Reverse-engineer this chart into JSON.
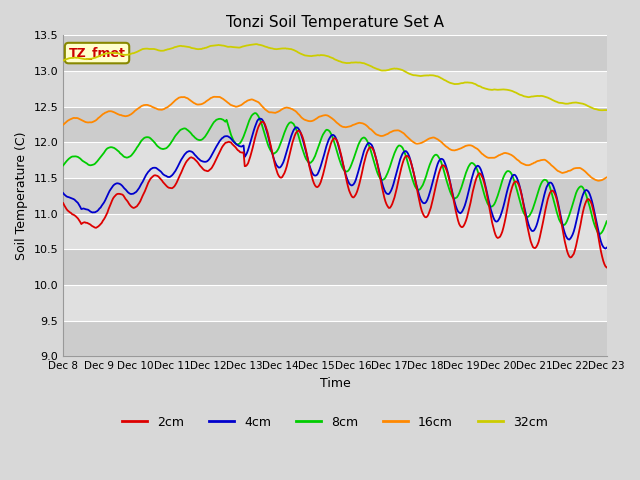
{
  "title": "Tonzi Soil Temperature Set A",
  "ylabel": "Soil Temperature (C)",
  "xlabel": "Time",
  "annotation": "TZ_fmet",
  "ylim": [
    9.0,
    13.5
  ],
  "y_ticks": [
    9.0,
    9.5,
    10.0,
    10.5,
    11.0,
    11.5,
    12.0,
    12.5,
    13.0,
    13.5
  ],
  "x_tick_labels": [
    "Dec 8",
    "Dec 9",
    "Dec 10",
    "Dec 11",
    "Dec 12",
    "Dec 13",
    "Dec 14",
    "Dec 15",
    "Dec 16",
    "Dec 17",
    "Dec 18",
    "Dec 19",
    "Dec 20",
    "Dec 21",
    "Dec 22",
    "Dec 23"
  ],
  "colors": {
    "2cm": "#dd0000",
    "4cm": "#0000cc",
    "8cm": "#00cc00",
    "16cm": "#ff8800",
    "32cm": "#cccc00"
  },
  "legend_labels": [
    "2cm",
    "4cm",
    "8cm",
    "16cm",
    "32cm"
  ],
  "fig_bg_color": "#d8d8d8",
  "plot_bg_color": "#d8d8d8",
  "band_colors": [
    "#cccccc",
    "#e0e0e0"
  ],
  "grid_color": "#ffffff",
  "n_points": 480
}
